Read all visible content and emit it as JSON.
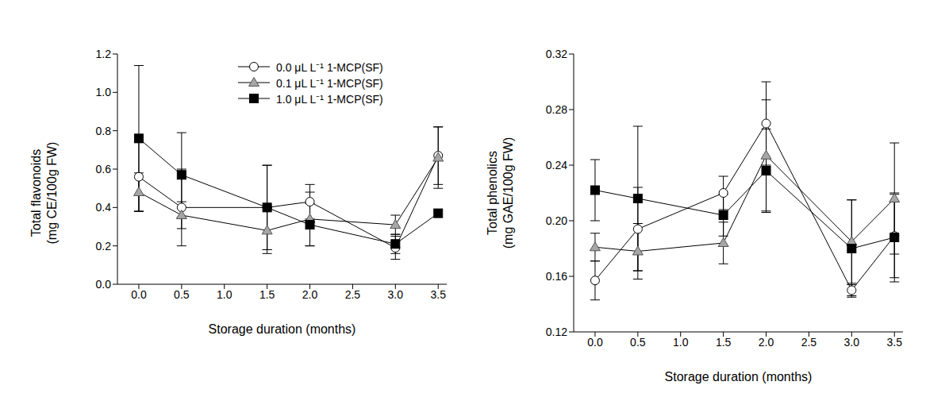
{
  "chart_data": [
    {
      "type": "line",
      "ylabel": [
        "Total flavonoids",
        "(mg CE/100g FW)"
      ],
      "xlabel": "Storage duration (months)",
      "x": [
        0,
        0.5,
        1.5,
        2,
        3,
        3.5
      ],
      "xlim": [
        -0.25,
        3.6
      ],
      "xticks": [
        {
          "value": 0,
          "label": "0.0"
        },
        0.5,
        {
          "value": 1,
          "label": "1.0"
        },
        1.5,
        {
          "value": 2,
          "label": "2.0"
        },
        2.5,
        {
          "value": 3,
          "label": "3.0"
        },
        3.5
      ],
      "ylim": [
        0,
        1.2
      ],
      "yticks": [
        {
          "value": 0,
          "label": "0.0"
        },
        0.2,
        0.4,
        0.6,
        0.8,
        {
          "value": 1,
          "label": "1.0"
        },
        1.2
      ],
      "legend": "upper right",
      "series": [
        {
          "name": "0.0 μL L⁻¹ 1-MCP(SF)",
          "color": "#ffffff",
          "marker": "circle",
          "line_style": "solid",
          "values": [
            0.56,
            0.4,
            0.4,
            0.43,
            0.19,
            0.67
          ],
          "errors": [
            0.18,
            0.2,
            0.22,
            0.09,
            0.06,
            0.15
          ]
        },
        {
          "name": "0.1 μL L⁻¹ 1-MCP(SF)",
          "color": "#a6a6a6",
          "marker": "triangle",
          "line_style": "solid",
          "values": [
            0.48,
            0.36,
            0.28,
            0.34,
            0.31,
            0.66
          ],
          "errors": [
            0.1,
            0.07,
            0.12,
            0.14,
            0.05,
            0.16
          ]
        },
        {
          "name": "1.0 μL L⁻¹ 1-MCP(SF)",
          "color": "#000000",
          "marker": "square",
          "line_style": "solid",
          "values": [
            0.76,
            0.57,
            0.4,
            0.31,
            0.21,
            0.37
          ],
          "errors": [
            0.38,
            0.22,
            0.22,
            0.11,
            0.05,
            0
          ]
        }
      ]
    },
    {
      "type": "line",
      "ylabel": [
        "Total phenolics",
        "(mg GAE/100g FW)"
      ],
      "xlabel": "Storage duration (months)",
      "x": [
        0,
        0.5,
        1.5,
        2,
        3,
        3.5
      ],
      "xlim": [
        -0.25,
        3.6
      ],
      "xticks": [
        {
          "value": 0,
          "label": "0.0"
        },
        0.5,
        {
          "value": 1,
          "label": "1.0"
        },
        1.5,
        {
          "value": 2,
          "label": "2.0"
        },
        2.5,
        {
          "value": 3,
          "label": "3.0"
        },
        3.5
      ],
      "ylim": [
        0.12,
        0.32
      ],
      "yticks": [
        0.12,
        0.16,
        {
          "value": 0.2,
          "label": "0.20"
        },
        0.24,
        0.28,
        0.32
      ],
      "series": [
        {
          "name": "0.0 μL L⁻¹ 1-MCP(SF)",
          "color": "#ffffff",
          "marker": "circle",
          "line_style": "solid",
          "values": [
            0.157,
            0.194,
            0.22,
            0.27,
            0.15,
            0.189
          ],
          "errors": [
            0.014,
            0.03,
            0.012,
            0.03,
            0.004,
            0.03
          ]
        },
        {
          "name": "0.1 μL L⁻¹ 1-MCP(SF)",
          "color": "#a6a6a6",
          "marker": "triangle",
          "line_style": "solid",
          "values": [
            0.181,
            0.178,
            0.184,
            0.247,
            0.185,
            0.216
          ],
          "errors": [
            0.01,
            0.02,
            0.015,
            0.04,
            0.03,
            0.04
          ]
        },
        {
          "name": "1.0 μL L⁻¹ 1-MCP(SF)",
          "color": "#000000",
          "marker": "square",
          "line_style": "solid",
          "values": [
            0.222,
            0.216,
            0.204,
            0.236,
            0.18,
            0.188
          ],
          "errors": [
            0.022,
            0.052,
            0.015,
            0.03,
            0.035,
            0.032
          ]
        }
      ]
    }
  ]
}
